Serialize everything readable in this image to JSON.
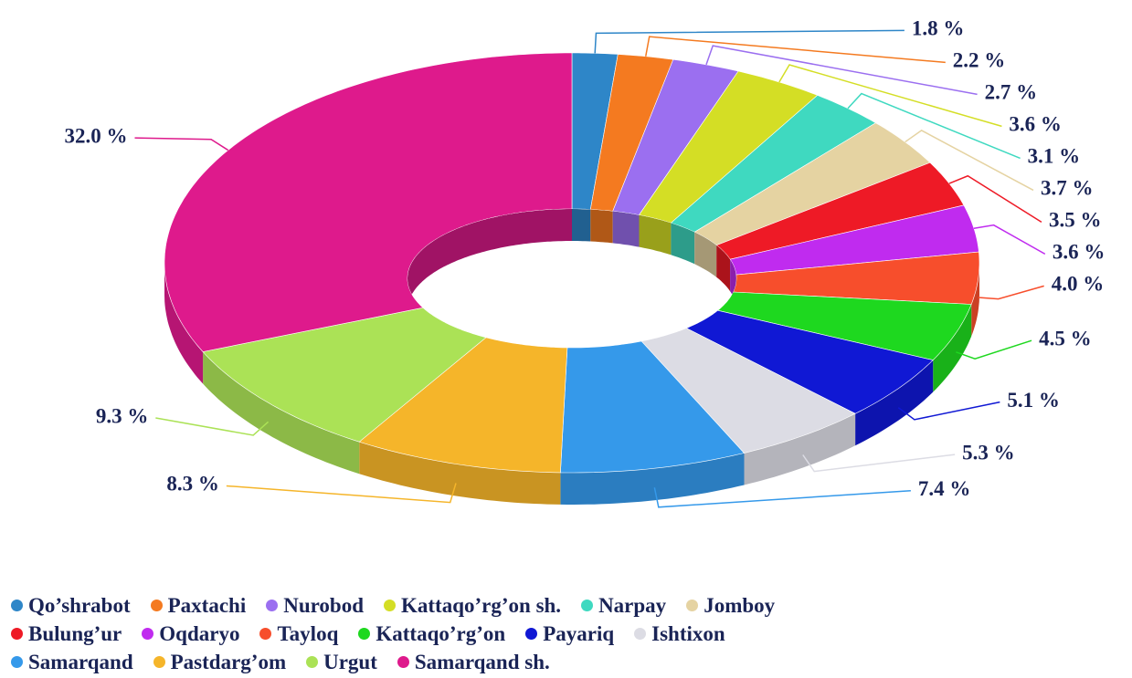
{
  "chart_data": {
    "type": "pie",
    "donut": true,
    "categories": [
      "Qo’shrabot",
      "Paxtachi",
      "Nurobod",
      "Kattaqo’rg’on sh.",
      "Narpay",
      "Jomboy",
      "Bulung’ur",
      "Oqdaryo",
      "Tayloq",
      "Kattaqo’rg’on",
      "Payariq",
      "Ishtixon",
      "Samarqand",
      "Pastdarg’om",
      "Urgut",
      "Samarqand sh."
    ],
    "values": [
      1.8,
      2.2,
      2.7,
      3.6,
      3.1,
      3.7,
      3.5,
      3.6,
      4.0,
      4.5,
      5.1,
      5.3,
      7.4,
      8.3,
      9.3,
      32.0
    ],
    "value_labels": [
      "1.8 %",
      "2.2 %",
      "2.7 %",
      "3.6 %",
      "3.1 %",
      "3.7 %",
      "3.5 %",
      "3.6 %",
      "4.0 %",
      "4.5 %",
      "5.1 %",
      "5.3 %",
      "7.4 %",
      "8.3 %",
      "9.3 %",
      "32.0 %"
    ],
    "colors": [
      "#2e86c8",
      "#f47a20",
      "#9b6ff0",
      "#d4de25",
      "#3fd9c0",
      "#e5d3a2",
      "#ee1a26",
      "#c02bef",
      "#f74e2c",
      "#1ed81f",
      "#1018d4",
      "#dcdce4",
      "#3599ea",
      "#f5b52a",
      "#abe256",
      "#de1a8c"
    ]
  }
}
